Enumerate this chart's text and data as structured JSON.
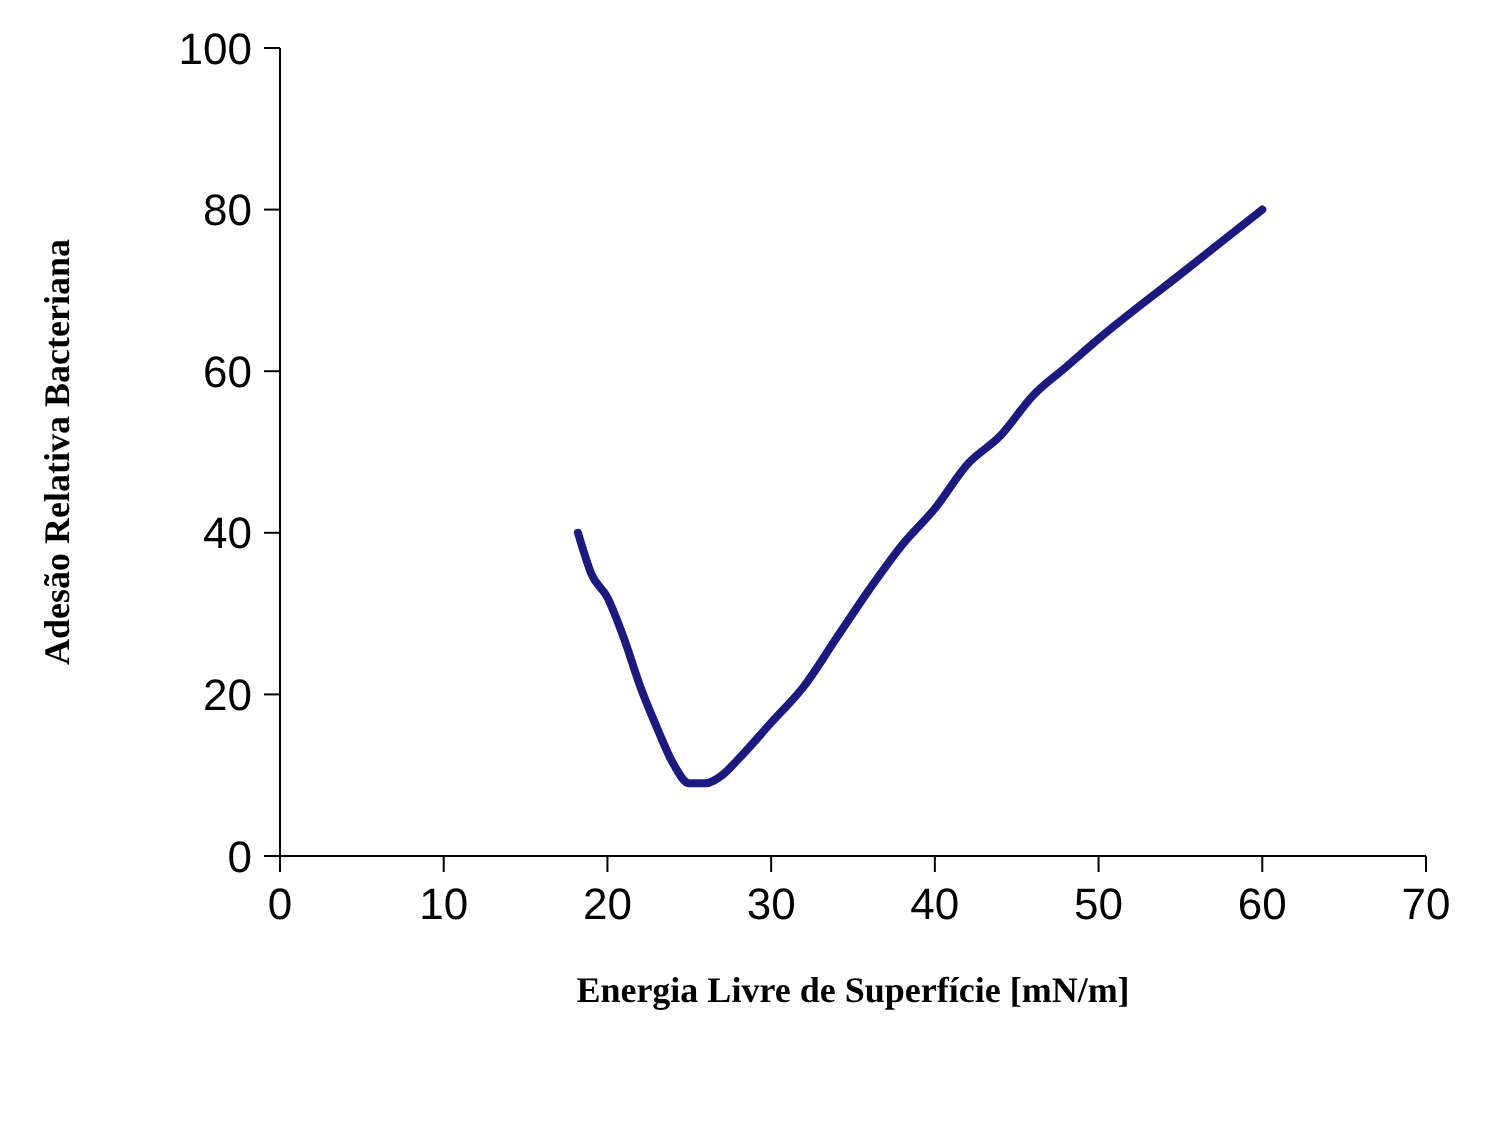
{
  "chart_data": {
    "type": "line",
    "xlabel": "Energia Livre de Superfície [mN/m]",
    "ylabel": "Adesão Relativa Bacteriana",
    "x": [
      18.2,
      18.5,
      19,
      20,
      21,
      22,
      23,
      24,
      25,
      26,
      27,
      28,
      30,
      32,
      34,
      36,
      38,
      40,
      42,
      44,
      46,
      48,
      50,
      55,
      60
    ],
    "series": [
      {
        "color": "#1c1a7e",
        "values": [
          40,
          38,
          35,
          32,
          27,
          21,
          16,
          11.5,
          9,
          9,
          10,
          12,
          16.5,
          21,
          27,
          33,
          38.5,
          43,
          48.5,
          52,
          57,
          60.5,
          64,
          72,
          80
        ]
      }
    ],
    "xlim": [
      0,
      70
    ],
    "xticks": [
      0,
      10,
      20,
      30,
      40,
      50,
      60,
      70
    ],
    "ylim": [
      0,
      100
    ],
    "yticks": [
      0,
      20,
      40,
      60,
      80,
      100
    ],
    "grid": false,
    "legend": false,
    "marker": "none",
    "line_style": "solid"
  }
}
